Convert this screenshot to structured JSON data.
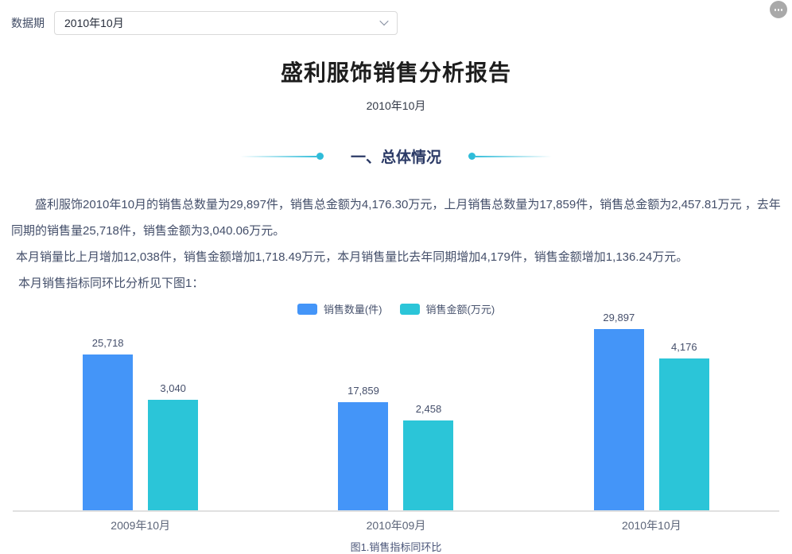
{
  "topbar": {
    "label": "数据期",
    "select_value": "2010年10月"
  },
  "report": {
    "title": "盛利服饰销售分析报告",
    "subtitle": "2010年10月",
    "section_title": "一、总体情况",
    "paragraph1": "盛利服饰2010年10月的销售总数量为29,897件，销售总金额为4,176.30万元，上月销售总数量为17,859件，销售总金额为2,457.81万元 ，去年同期的销售量25,718件，销售金额为3,040.06万元。",
    "paragraph2": "本月销量比上月增加12,038件，销售金额增加1,718.49万元，本月销售量比去年同期增加4,179件，销售金额增加1,136.24万元。",
    "paragraph3": "本月销售指标同环比分析见下图1：",
    "figure_caption": "图1.销售指标同环比"
  },
  "chart_data": {
    "type": "bar",
    "title": "图1.销售指标同环比",
    "categories": [
      "2009年10月",
      "2010年09月",
      "2010年10月"
    ],
    "series": [
      {
        "name": "销售数量(件)",
        "values": [
          25718,
          17859,
          29897
        ],
        "labels": [
          "25,718",
          "17,859",
          "29,897"
        ],
        "color": "#4495f8",
        "axis": "left",
        "axis_max": 30000
      },
      {
        "name": "销售金额(万元)",
        "values": [
          3040,
          2458,
          4176
        ],
        "labels": [
          "3,040",
          "2,458",
          "4,176"
        ],
        "color": "#2bc5d8",
        "axis": "right",
        "axis_max": 5000
      }
    ],
    "legend_position": "top",
    "grid": false,
    "axes_hidden": true,
    "data_labels": true
  },
  "colors": {
    "bar_blue": "#4495f8",
    "bar_teal": "#2bc5d8",
    "accent_teal": "#2fbcd9",
    "section_title_text": "#2b3a66",
    "body_text": "#444f6a",
    "axis_line": "#e0e0e0"
  }
}
